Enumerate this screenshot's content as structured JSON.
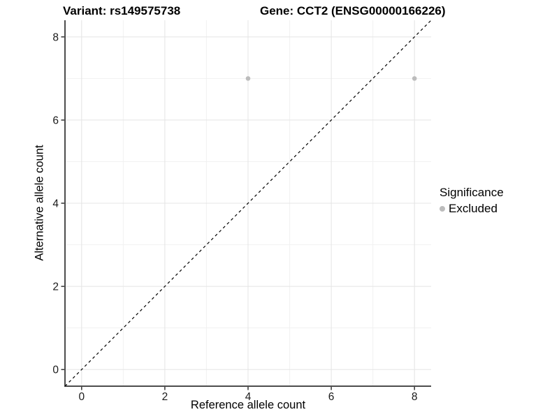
{
  "chart_data": {
    "type": "scatter",
    "title_left": "Variant: rs149575738",
    "title_right": "Gene: CCT2 (ENSG00000166226)",
    "xlabel": "Reference allele count",
    "ylabel": "Alternative allele count",
    "xlim": [
      -0.4,
      8.4
    ],
    "ylim": [
      -0.4,
      8.4
    ],
    "xticks": [
      0,
      2,
      4,
      6,
      8
    ],
    "yticks": [
      0,
      2,
      4,
      6,
      8
    ],
    "xminor": [
      1,
      3,
      5,
      7
    ],
    "yminor": [
      1,
      3,
      5,
      7
    ],
    "grid": "major+minor",
    "series": [
      {
        "name": "Excluded",
        "marker": "circle",
        "color": "#bcbcbc",
        "points": [
          {
            "x": 4,
            "y": 7
          },
          {
            "x": 8,
            "y": 7
          }
        ]
      }
    ],
    "reference_line": {
      "type": "identity y=x",
      "style": "dashed",
      "color": "#000000",
      "from": [
        -0.4,
        -0.4
      ],
      "to": [
        8.4,
        8.4
      ]
    },
    "legend": {
      "title": "Significance",
      "position": "right",
      "items": [
        {
          "label": "Excluded",
          "marker": "circle",
          "color": "#bcbcbc"
        }
      ]
    },
    "colors": {
      "background": "#ffffff",
      "axis_line": "#4d4d4d",
      "tick_mark": "#333333",
      "tick_label": "#1a1a1a",
      "grid_major": "#e4e4e4",
      "grid_minor": "#f1f1f1"
    }
  }
}
